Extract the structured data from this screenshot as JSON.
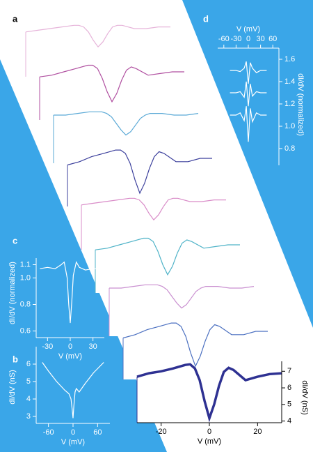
{
  "chart_data": [
    {
      "type": "line",
      "panel": "a",
      "xlabel": "V (mV)",
      "ylabel": "dI/dV (nS)",
      "xlim": [
        -30,
        30
      ],
      "xticks": [
        -20,
        0,
        20
      ],
      "ylim": [
        3.9,
        7.6
      ],
      "yticks": [
        4,
        5,
        6,
        7
      ],
      "x": [
        -30,
        -25,
        -20,
        -15,
        -10,
        -8,
        -6,
        -4,
        -2,
        0,
        2,
        4,
        6,
        8,
        10,
        15,
        20,
        25,
        30
      ],
      "series": [
        {
          "color": "#e6b3d9",
          "values": [
            6.6,
            6.7,
            6.8,
            6.9,
            7.0,
            7.0,
            6.9,
            6.6,
            6.1,
            5.7,
            6.0,
            6.5,
            6.9,
            7.0,
            7.0,
            6.8,
            6.8,
            6.9,
            6.9
          ]
        },
        {
          "color": "#b04fa0",
          "values": [
            6.5,
            6.6,
            6.8,
            7.0,
            7.2,
            7.2,
            7.0,
            6.4,
            5.6,
            5.0,
            5.5,
            6.3,
            6.9,
            7.1,
            7.0,
            6.6,
            6.7,
            6.8,
            6.8
          ]
        },
        {
          "color": "#5aa9d6",
          "values": [
            6.8,
            6.8,
            6.9,
            7.0,
            7.0,
            6.9,
            6.7,
            6.3,
            5.9,
            5.6,
            5.8,
            6.2,
            6.6,
            6.8,
            6.9,
            6.9,
            6.8,
            6.8,
            6.9
          ]
        },
        {
          "color": "#3b3f9c",
          "values": [
            6.4,
            6.6,
            6.9,
            7.1,
            7.3,
            7.3,
            7.1,
            6.5,
            5.5,
            4.7,
            5.3,
            6.2,
            6.9,
            7.2,
            7.1,
            6.6,
            6.6,
            6.8,
            6.8
          ]
        },
        {
          "color": "#d98cc8",
          "values": [
            6.6,
            6.7,
            6.8,
            6.9,
            7.0,
            7.0,
            6.9,
            6.6,
            6.1,
            5.7,
            6.0,
            6.5,
            6.9,
            7.0,
            7.0,
            6.8,
            6.8,
            6.9,
            6.9
          ]
        },
        {
          "color": "#4fb3c8",
          "values": [
            6.5,
            6.6,
            6.8,
            7.0,
            7.2,
            7.2,
            7.0,
            6.4,
            5.6,
            5.0,
            5.5,
            6.3,
            6.9,
            7.1,
            7.0,
            6.6,
            6.7,
            6.8,
            6.8
          ]
        },
        {
          "color": "#c98fd0",
          "values": [
            6.8,
            6.8,
            6.9,
            7.0,
            7.0,
            6.9,
            6.7,
            6.3,
            5.9,
            5.6,
            5.8,
            6.2,
            6.6,
            6.8,
            6.9,
            6.9,
            6.8,
            6.8,
            6.9
          ]
        },
        {
          "color": "#4a6fc0",
          "values": [
            6.4,
            6.6,
            6.9,
            7.1,
            7.3,
            7.3,
            7.1,
            6.5,
            5.5,
            4.7,
            5.3,
            6.2,
            6.9,
            7.2,
            7.1,
            6.6,
            6.6,
            6.8,
            6.8
          ]
        },
        {
          "color": "#2e3192",
          "values": [
            6.67,
            6.88,
            7.0,
            7.17,
            7.38,
            7.42,
            7.17,
            6.46,
            5.21,
            4.17,
            5.0,
            6.13,
            6.96,
            7.21,
            7.08,
            6.46,
            6.67,
            6.83,
            6.88
          ]
        }
      ]
    },
    {
      "type": "line",
      "panel": "b",
      "xlabel": "V (mV)",
      "ylabel": "dI/dV (nS)",
      "xlim": [
        -90,
        90
      ],
      "xticks": [
        -60,
        0,
        60
      ],
      "ylim": [
        2.6,
        7
      ],
      "yticks": [
        3,
        4,
        5,
        6
      ],
      "x": [
        -75,
        -60,
        -40,
        -20,
        -10,
        -5,
        -2,
        0,
        2,
        5,
        8,
        15,
        30,
        50,
        75
      ],
      "series": [
        {
          "color": "#ffffff",
          "values": [
            6.1,
            5.6,
            5.0,
            4.5,
            4.3,
            4.0,
            3.4,
            2.9,
            3.6,
            4.4,
            4.6,
            4.4,
            4.9,
            5.5,
            6.1
          ]
        }
      ]
    },
    {
      "type": "line",
      "panel": "c",
      "xlabel": "V (mV)",
      "ylabel": "dI/dV (normalized)",
      "xlim": [
        -45,
        45
      ],
      "xticks": [
        -30,
        0,
        30
      ],
      "ylim": [
        0.55,
        1.15
      ],
      "yticks": [
        0.6,
        0.8,
        {
          "value": 1.0,
          "label": "1.0"
        },
        1.1
      ],
      "x": [
        -40,
        -30,
        -20,
        -12,
        -8,
        -4,
        -2,
        0,
        2,
        4,
        8,
        12,
        20,
        30,
        40
      ],
      "series": [
        {
          "color": "#ffffff",
          "values": [
            1.07,
            1.08,
            1.07,
            1.1,
            1.12,
            1.0,
            0.8,
            0.66,
            0.82,
            1.02,
            1.12,
            1.08,
            1.06,
            1.07,
            1.07
          ]
        }
      ]
    },
    {
      "type": "line",
      "panel": "d",
      "xlabel": "V (mV)",
      "ylabel": "dI/dV (normalized)",
      "xlim": [
        -75,
        75
      ],
      "xticks": [
        -60,
        -30,
        0,
        30,
        60
      ],
      "ylim": [
        0.65,
        1.7
      ],
      "yticks": [
        0.8,
        {
          "value": 1.0,
          "label": "1.0"
        },
        1.2,
        1.4,
        1.6
      ],
      "x": [
        -45,
        -30,
        -20,
        -10,
        -5,
        0,
        5,
        10,
        20,
        30,
        45
      ],
      "series": [
        {
          "color": "#ffffff",
          "values": [
            1.5,
            1.5,
            1.49,
            1.52,
            1.58,
            1.38,
            1.57,
            1.52,
            1.48,
            1.5,
            1.5
          ]
        },
        {
          "color": "#ffffff",
          "values": [
            1.3,
            1.3,
            1.31,
            1.26,
            1.4,
            1.18,
            1.38,
            1.27,
            1.31,
            1.3,
            1.3
          ]
        },
        {
          "color": "#ffffff",
          "values": [
            1.1,
            1.1,
            1.12,
            1.05,
            1.18,
            0.86,
            1.16,
            1.04,
            1.12,
            1.1,
            1.1
          ]
        }
      ]
    }
  ]
}
